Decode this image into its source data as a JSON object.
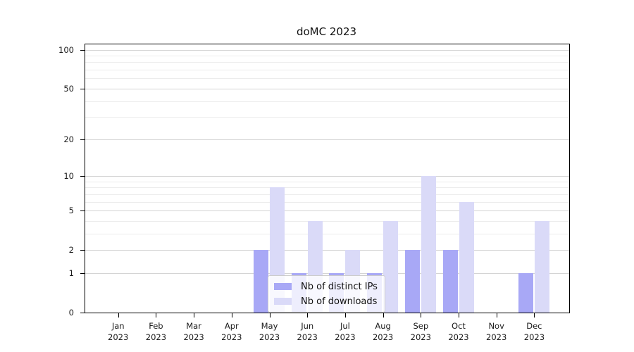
{
  "figure": {
    "title": "doMC 2023",
    "background_color": "#ffffff"
  },
  "chart_data": {
    "type": "bar",
    "title": "doMC 2023",
    "categories": [
      "Jan 2023",
      "Feb 2023",
      "Mar 2023",
      "Apr 2023",
      "May 2023",
      "Jun 2023",
      "Jul 2023",
      "Aug 2023",
      "Sep 2023",
      "Oct 2023",
      "Nov 2023",
      "Dec 2023"
    ],
    "series": [
      {
        "name": "Nb of distinct IPs",
        "color": "#a8a8f6",
        "values": [
          0,
          0,
          0,
          0,
          2,
          1,
          1,
          1,
          2,
          2,
          0,
          1
        ]
      },
      {
        "name": "Nb of downloads",
        "color": "#dadaf8",
        "values": [
          0,
          0,
          0,
          0,
          8,
          4,
          2,
          4,
          10,
          6,
          0,
          4
        ]
      }
    ],
    "xlabel": "",
    "ylabel": "",
    "yscale": "log1p",
    "ylim": [
      0,
      111
    ],
    "yticks": [
      0,
      1,
      2,
      5,
      10,
      20,
      50,
      100
    ],
    "minor_gridlines": [
      3,
      4,
      6,
      7,
      8,
      9,
      30,
      40,
      60,
      70,
      80,
      90
    ],
    "grid": true,
    "legend_position": "lower center",
    "axis_color": "#000000",
    "major_grid_color": "#d4d4d4",
    "minor_grid_color": "#ececec"
  }
}
